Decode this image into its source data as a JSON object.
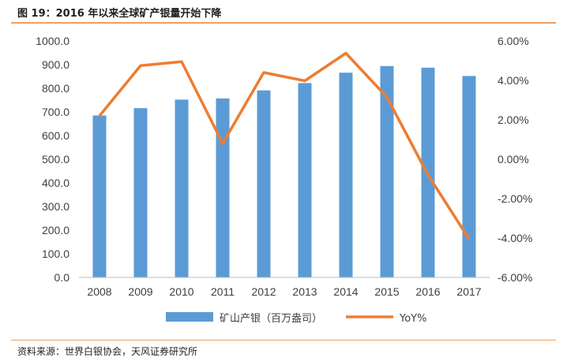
{
  "figure": {
    "title": "图 19：2016 年以来全球矿产银量开始下降",
    "source": "资料来源：世界白银协会，天风证券研究所"
  },
  "colors": {
    "bar": "#5b9bd5",
    "line": "#ed7d31",
    "rule": "#f0a060",
    "axis": "#bfbfbf"
  },
  "chart_data": {
    "type": "bar",
    "categories": [
      "2008",
      "2009",
      "2010",
      "2011",
      "2012",
      "2013",
      "2014",
      "2015",
      "2016",
      "2017"
    ],
    "series": [
      {
        "name": "矿山产银（百万盎司）",
        "axis": "left",
        "kind": "bar",
        "values": [
          685,
          716,
          752,
          757,
          791,
          822,
          866,
          894,
          887,
          852
        ]
      },
      {
        "name": "YoY%",
        "axis": "right",
        "kind": "line",
        "values": [
          2.2,
          4.75,
          4.95,
          0.8,
          4.4,
          3.98,
          5.38,
          3.15,
          -0.8,
          -4.05
        ]
      }
    ],
    "ylim_left": [
      0,
      1000
    ],
    "yticks_left": [
      "1000.0",
      "900.0",
      "800.0",
      "700.0",
      "600.0",
      "500.0",
      "400.0",
      "300.0",
      "200.0",
      "100.0",
      "0.0"
    ],
    "ylim_right": [
      -6,
      6
    ],
    "yticks_right": [
      "6.00%",
      "4.00%",
      "2.00%",
      "0.00%",
      "-2.00%",
      "-4.00%",
      "-6.00%"
    ],
    "legend_position": "bottom-center",
    "grid": false
  }
}
